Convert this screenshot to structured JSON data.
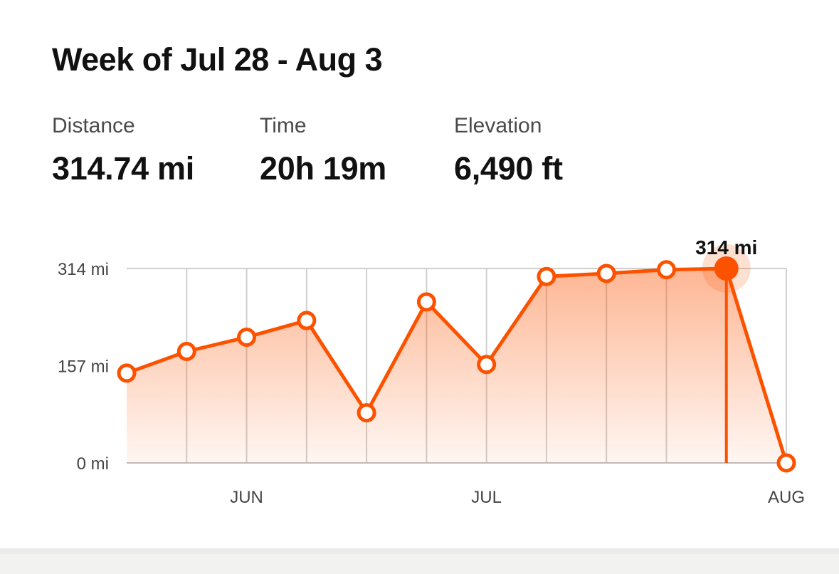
{
  "header": {
    "title": "Week of Jul 28 - Aug 3"
  },
  "stats": [
    {
      "label": "Distance",
      "value": "314.74 mi"
    },
    {
      "label": "Time",
      "value": "20h 19m"
    },
    {
      "label": "Elevation",
      "value": "6,490 ft"
    }
  ],
  "colors": {
    "accent": "#fc5200",
    "grid": "#cfcfcf",
    "axis_text": "#444444"
  },
  "chart_data": {
    "type": "line",
    "ylim": [
      0,
      314
    ],
    "y_ticks": [
      {
        "value": 0,
        "label": "0 mi"
      },
      {
        "value": 157,
        "label": "157 mi"
      },
      {
        "value": 314,
        "label": "314 mi"
      }
    ],
    "x_ticks": [
      {
        "index": 2,
        "label": "JUN"
      },
      {
        "index": 6,
        "label": "JUL"
      },
      {
        "index": 11,
        "label": "AUG"
      }
    ],
    "values": [
      145,
      180,
      203,
      230,
      81,
      260,
      159,
      301,
      306,
      312,
      314,
      0
    ],
    "selected_index": 10,
    "selected_label": "314 mi",
    "grid": true
  }
}
